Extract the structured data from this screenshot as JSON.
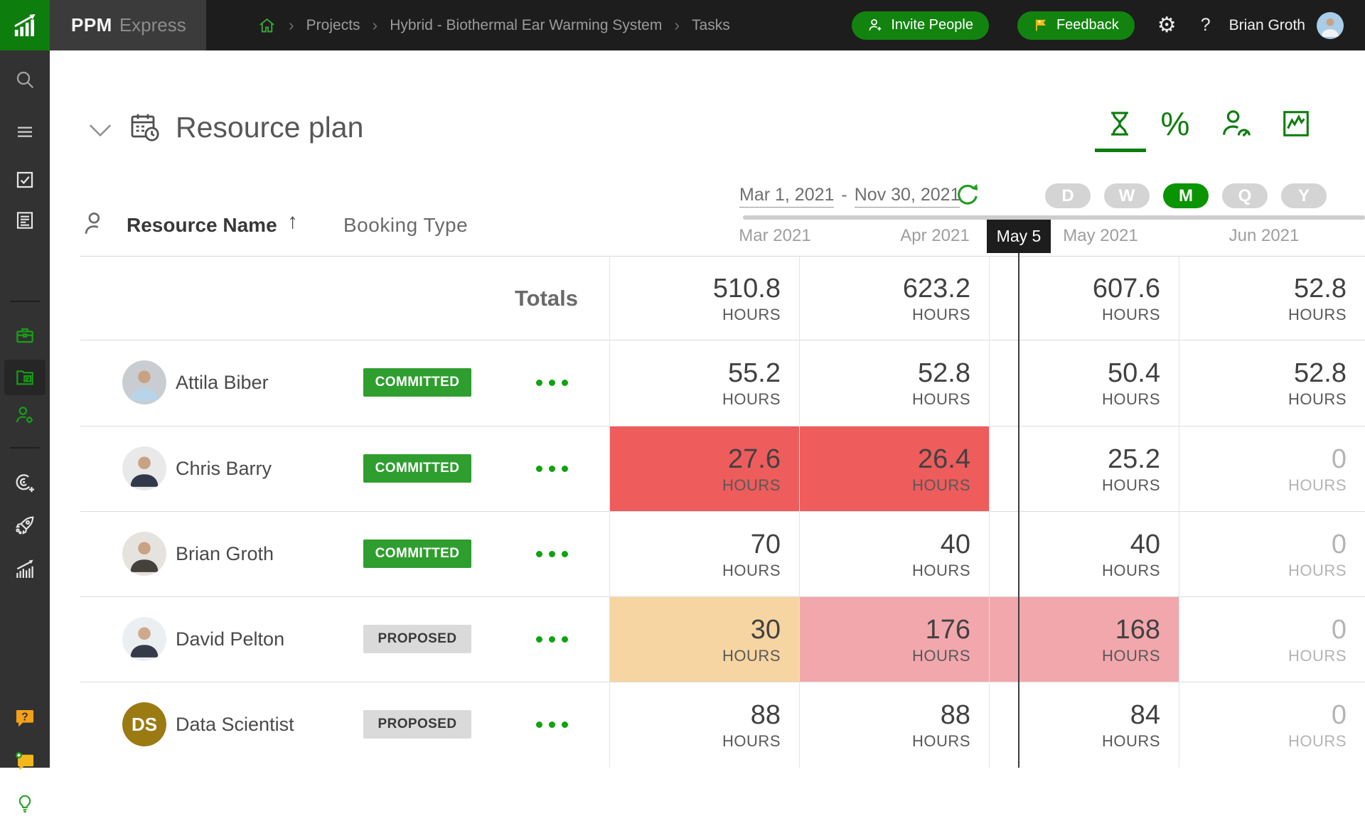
{
  "colors": {
    "accent_green": "#0d7d0d",
    "pill_green": "#12830f",
    "active_scale_green": "#0a9400",
    "badge_committed": "#2e9e2e",
    "badge_proposed": "#dadada",
    "menu_dots_green": "#0fa30f",
    "cell_red": "#ee5c5c",
    "cell_orange": "#f6d5a2",
    "cell_pink": "#f2a7ad",
    "today_marker_bg": "#1d1d1d",
    "topbar_bg": "#1d1d1d",
    "sidebar_bg": "#323232"
  },
  "topbar": {
    "brand_bold": "PPM",
    "brand_light": "Express",
    "home_icon": "home-icon",
    "breadcrumb_separator": "›",
    "breadcrumb": [
      "Projects",
      "Hybrid - Biothermal Ear Warming System",
      "Tasks"
    ],
    "invite_label": "Invite People",
    "feedback_label": "Feedback",
    "gear_icon": "⚙",
    "help_label": "?",
    "user_name": "Brian Groth"
  },
  "sidebar": {
    "icons": [
      "search-icon",
      "menu-icon",
      "tasks-checkbox-icon",
      "notes-icon",
      "portfolio-briefcase-icon",
      "resource-plan-icon",
      "resources-person-gear-icon",
      "goals-target-icon",
      "launch-rocket-icon",
      "reports-chart-icon",
      "help-bubble-icon",
      "feedback-bubble-icon",
      "ideas-lightbulb-icon"
    ],
    "active_item": "resource-plan-icon"
  },
  "header": {
    "title": "Resource plan",
    "view_icons": [
      "hourglass-icon",
      "percent-icon",
      "person-gauge-icon",
      "chart-frame-icon"
    ],
    "active_view": "hourglass-icon",
    "percent_glyph": "%"
  },
  "toolbar": {
    "date_start": "Mar 1, 2021",
    "date_separator": "-",
    "date_end": "Nov 30, 2021",
    "zoom_levels": [
      {
        "label": "D",
        "active": false
      },
      {
        "label": "W",
        "active": false
      },
      {
        "label": "M",
        "active": true
      },
      {
        "label": "Q",
        "active": false
      },
      {
        "label": "Y",
        "active": false
      }
    ]
  },
  "table": {
    "resource_name_header": "Resource Name",
    "sort_icon": "↑",
    "booking_type_header": "Booking Type",
    "months": [
      "Mar 2021",
      "Apr 2021",
      "May 2021",
      "Jun 2021"
    ],
    "today_marker": "May 5",
    "totals_label": "Totals",
    "hours_label": "HOURS",
    "totals": [
      "510.8",
      "623.2",
      "607.6",
      "52.8"
    ],
    "rows": [
      {
        "name": "Attila Biber",
        "booking": {
          "label": "COMMITTED",
          "style": "committed"
        },
        "avatar": {
          "kind": "photo",
          "bg": "#c9cdd1",
          "coat": "#b8d4e8",
          "skin": "#c9a284"
        },
        "cells": [
          {
            "value": "55.2"
          },
          {
            "value": "52.8"
          },
          {
            "value": "50.4"
          },
          {
            "value": "52.8"
          }
        ]
      },
      {
        "name": "Chris Barry",
        "booking": {
          "label": "COMMITTED",
          "style": "committed"
        },
        "avatar": {
          "kind": "photo",
          "bg": "#e9e9e9",
          "coat": "#31394a",
          "skin": "#c9a284"
        },
        "cells": [
          {
            "value": "27.6",
            "bg": "red"
          },
          {
            "value": "26.4",
            "bg": "red"
          },
          {
            "value": "25.2"
          },
          {
            "value": "0",
            "muted": true
          }
        ]
      },
      {
        "name": "Brian Groth",
        "booking": {
          "label": "COMMITTED",
          "style": "committed"
        },
        "avatar": {
          "kind": "photo",
          "bg": "#e6e3df",
          "coat": "#44403c",
          "skin": "#c9a284"
        },
        "cells": [
          {
            "value": "70"
          },
          {
            "value": "40"
          },
          {
            "value": "40"
          },
          {
            "value": "0",
            "muted": true
          }
        ]
      },
      {
        "name": "David Pelton",
        "booking": {
          "label": "PROPOSED",
          "style": "proposed"
        },
        "avatar": {
          "kind": "photo",
          "bg": "#eceff1",
          "coat": "#353b49",
          "skin": "#cfa98d"
        },
        "cells": [
          {
            "value": "30",
            "bg": "orange"
          },
          {
            "value": "176",
            "bg": "pink"
          },
          {
            "value": "168",
            "bg": "pink"
          },
          {
            "value": "0",
            "muted": true
          }
        ]
      },
      {
        "name": "Data Scientist",
        "booking": {
          "label": "PROPOSED",
          "style": "proposed"
        },
        "avatar": {
          "kind": "initials",
          "initials": "DS",
          "bg": "#9c7a12"
        },
        "cells": [
          {
            "value": "88"
          },
          {
            "value": "88"
          },
          {
            "value": "84"
          },
          {
            "value": "0",
            "muted": true
          }
        ]
      }
    ]
  }
}
